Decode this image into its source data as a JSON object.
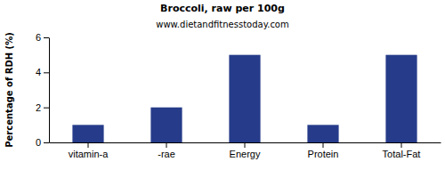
{
  "chart_data": {
    "type": "bar",
    "title": "Broccoli, raw per 100g",
    "subtitle": "www.dietandfitnesstoday.com",
    "y_label": "Percentage of RDH (%)",
    "categories": [
      "vitamin-a",
      "-rae",
      "Energy",
      "Protein",
      "Total-Fat"
    ],
    "values": [
      1,
      2,
      5,
      1,
      5
    ],
    "color": "#263c8a",
    "ylim": [
      0,
      6
    ],
    "yticks": [
      0,
      2,
      4,
      6
    ],
    "grid": false
  }
}
